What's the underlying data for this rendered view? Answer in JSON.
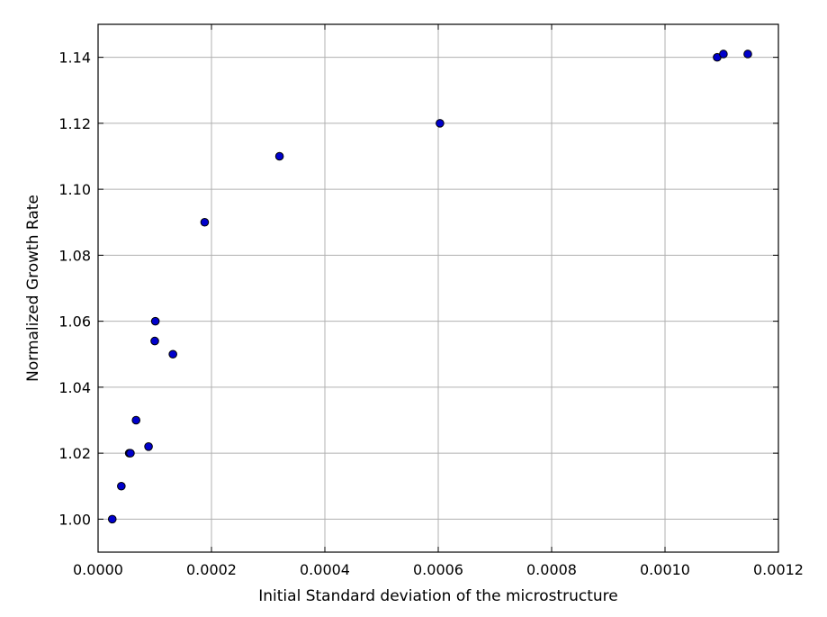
{
  "chart_data": {
    "type": "scatter",
    "title": "",
    "xlabel": "Initial Standard deviation of the microstructure",
    "ylabel": "Normalized Growth Rate",
    "xlim": [
      0.0,
      0.0012
    ],
    "ylim": [
      0.99,
      1.15
    ],
    "xticks": [
      0.0,
      0.0002,
      0.0004,
      0.0006,
      0.0008,
      0.001,
      0.0012
    ],
    "xtick_labels": [
      "0.0000",
      "0.0002",
      "0.0004",
      "0.0006",
      "0.0008",
      "0.0010",
      "0.0012"
    ],
    "yticks": [
      1.0,
      1.02,
      1.04,
      1.06,
      1.08,
      1.1,
      1.12,
      1.14
    ],
    "ytick_labels": [
      "1.00",
      "1.02",
      "1.04",
      "1.06",
      "1.08",
      "1.10",
      "1.12",
      "1.14"
    ],
    "grid": true,
    "legend": "none",
    "marker_color": "#0000cc",
    "marker_edge_color": "#000000",
    "points": [
      {
        "x": 2.5e-05,
        "y": 1.0
      },
      {
        "x": 4.1e-05,
        "y": 1.01
      },
      {
        "x": 5.5e-05,
        "y": 1.02
      },
      {
        "x": 5.7e-05,
        "y": 1.02
      },
      {
        "x": 6.7e-05,
        "y": 1.03
      },
      {
        "x": 8.9e-05,
        "y": 1.022
      },
      {
        "x": 0.0001,
        "y": 1.054
      },
      {
        "x": 0.000101,
        "y": 1.06
      },
      {
        "x": 0.000132,
        "y": 1.05
      },
      {
        "x": 0.000188,
        "y": 1.09
      },
      {
        "x": 0.00032,
        "y": 1.11
      },
      {
        "x": 0.000603,
        "y": 1.12
      },
      {
        "x": 0.001092,
        "y": 1.14
      },
      {
        "x": 0.001103,
        "y": 1.141
      },
      {
        "x": 0.001146,
        "y": 1.141
      }
    ]
  }
}
